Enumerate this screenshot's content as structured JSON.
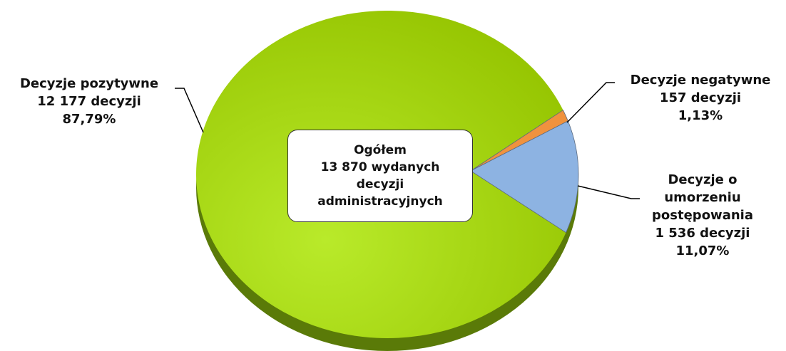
{
  "chart_data": {
    "type": "pie",
    "categories": [
      "Decyzje pozytywne",
      "Decyzje negatywne",
      "Decyzje o umorzeniu postępowania"
    ],
    "values": [
      87.79,
      1.13,
      11.07
    ],
    "value_labels": [
      "87,79%",
      "1,13%",
      "11,07%"
    ],
    "count_labels": [
      "12 177 decyzji",
      "157 decyzji",
      "1 536 decyzji"
    ],
    "colors": [
      "#9dcc1a",
      "#f0923e",
      "#8db3e2"
    ],
    "annotation": [
      "Ogółem",
      "13 870 wydanych",
      "decyzji",
      "administracyjnych"
    ]
  }
}
